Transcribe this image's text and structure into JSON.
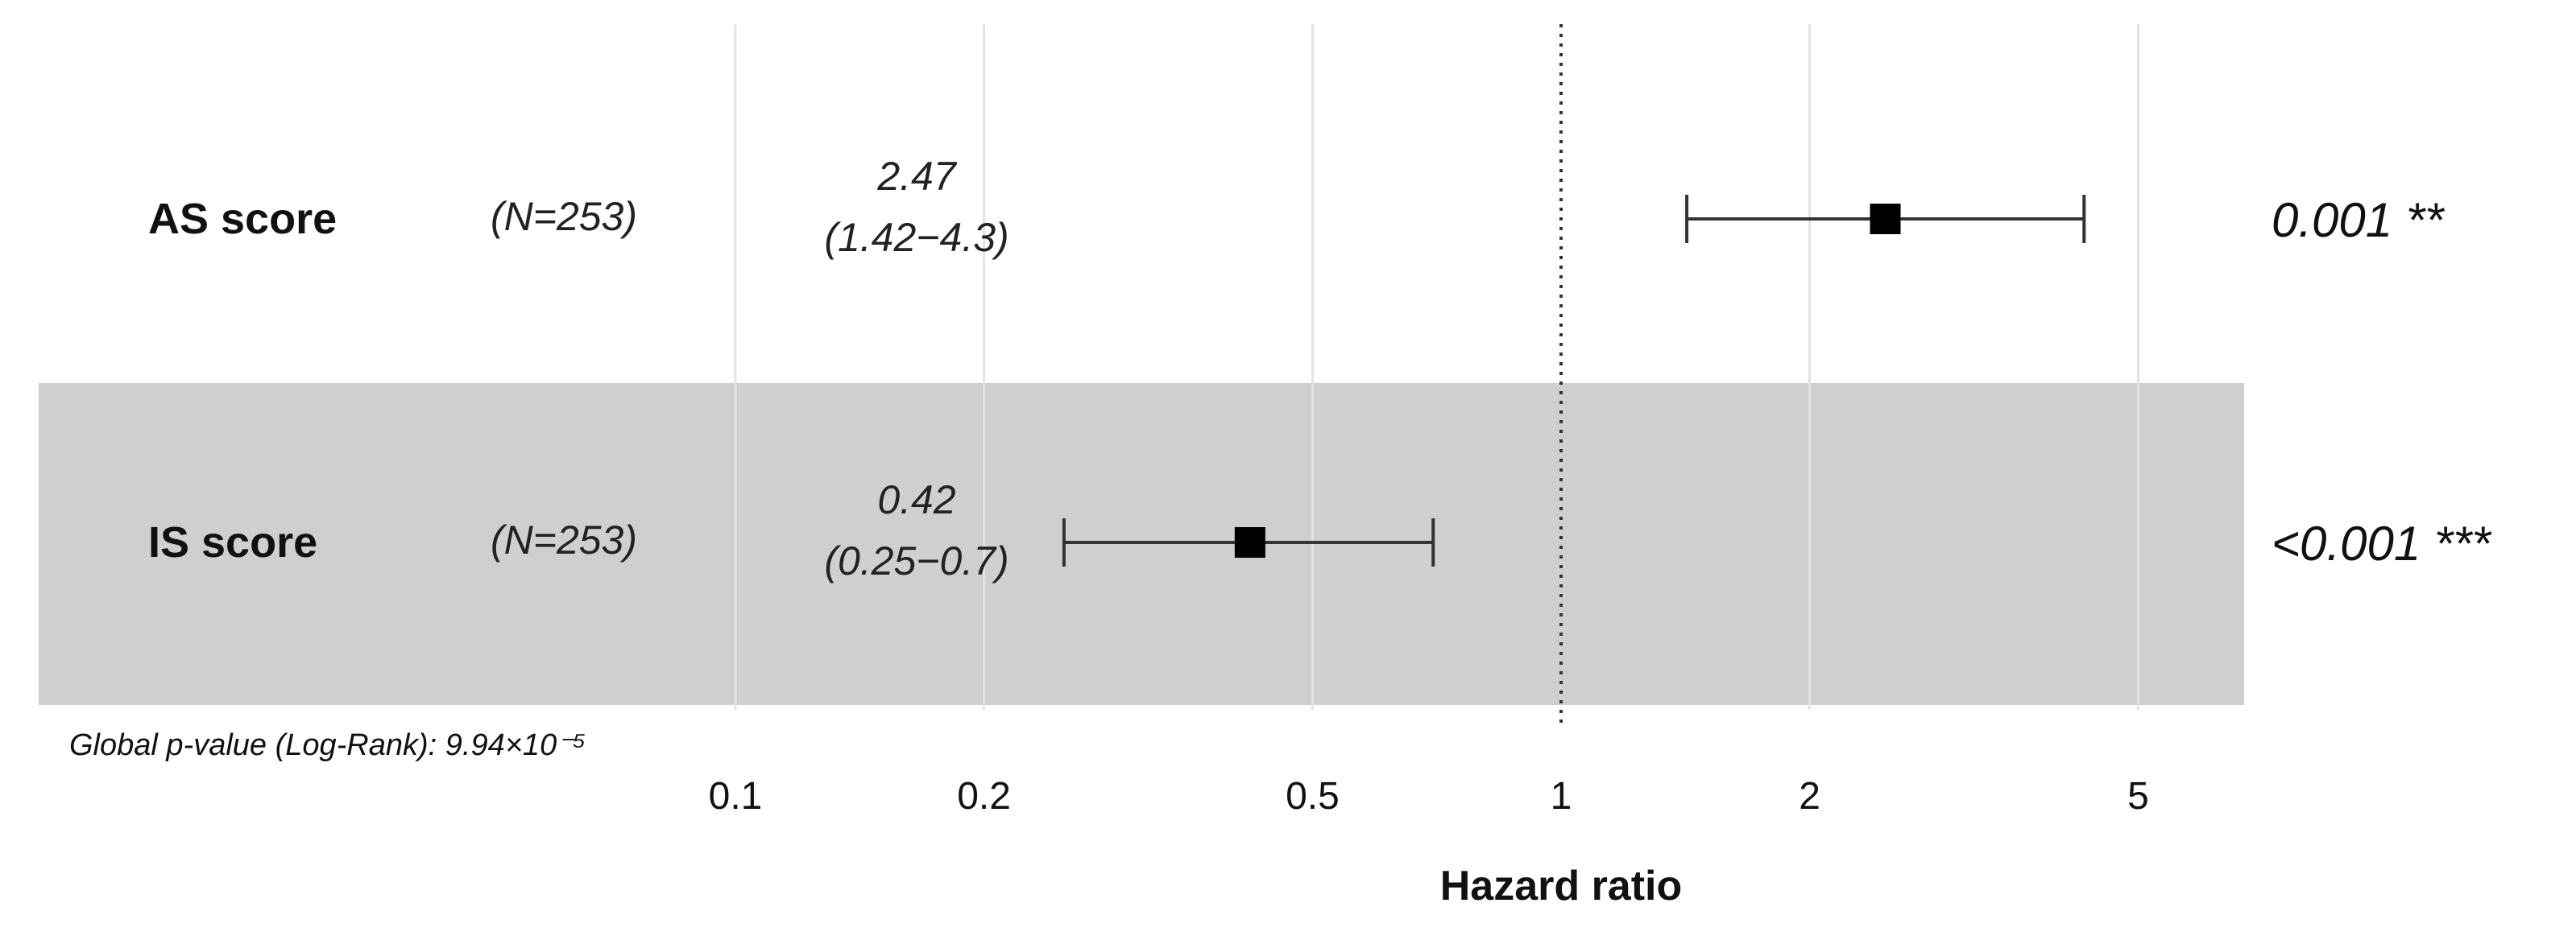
{
  "chart_data": {
    "type": "forest",
    "xlabel": "Hazard ratio",
    "x_scale": "log",
    "xlim": [
      0.085,
      8
    ],
    "x_ticks": [
      0.1,
      0.2,
      0.5,
      1,
      2,
      5
    ],
    "x_tick_labels": [
      "0.1",
      "0.2",
      "0.5",
      "1",
      "2",
      "5"
    ],
    "reference_line": 1,
    "rows": [
      {
        "label": "AS score",
        "n_label": "(N=253)",
        "hr": 2.47,
        "ci_low": 1.42,
        "ci_high": 4.3,
        "hr_label": "2.47",
        "ci_label": "(1.42−4.3)",
        "p_label": "0.001 **",
        "shaded": false
      },
      {
        "label": "IS score",
        "n_label": "(N=253)",
        "hr": 0.42,
        "ci_low": 0.25,
        "ci_high": 0.7,
        "hr_label": "0.42",
        "ci_label": "(0.25−0.7)",
        "p_label": "<0.001 ***",
        "shaded": true
      }
    ],
    "footnote": "Global p-value (Log-Rank): 9.94×10⁻⁵",
    "colors": {
      "shade": "#cfcfcf",
      "grid": "#e3e3e3",
      "marker": "#000000",
      "errorbar": "#333333",
      "refline": "#333333"
    }
  }
}
